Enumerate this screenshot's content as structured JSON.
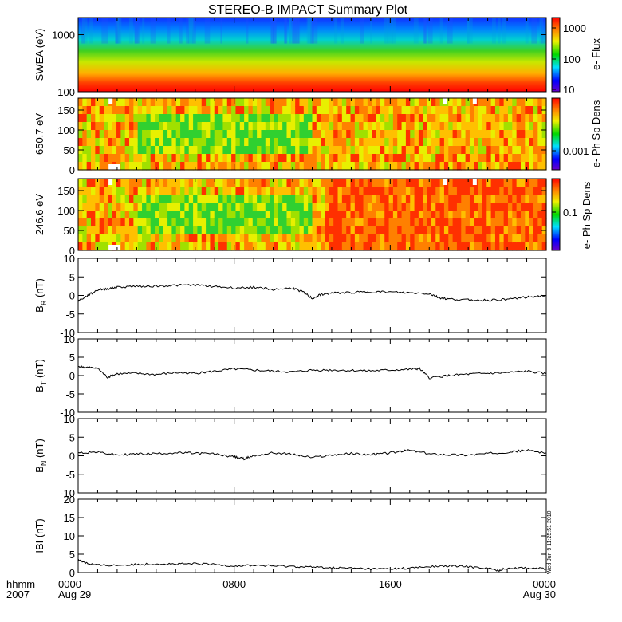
{
  "title": "STEREO-B IMPACT Summary Plot",
  "time_axis": {
    "ticks": [
      {
        "label": "0000",
        "sublabel": "Aug 29",
        "hours": 0
      },
      {
        "label": "0800",
        "sublabel": "",
        "hours": 8
      },
      {
        "label": "1600",
        "sublabel": "",
        "hours": 16
      },
      {
        "label": "0000",
        "sublabel": "Aug 30",
        "hours": 24
      }
    ],
    "corner_label": "hhmm",
    "corner_year": "2007",
    "timestamp": "Wed Jun 9 11:25:51 2010"
  },
  "colorbar_ticks": {
    "swea": [
      "1000",
      "100",
      "10"
    ],
    "ph650": [
      "0.001"
    ],
    "ph246": [
      "0.1"
    ]
  },
  "colorbar_labels": {
    "swea": "e- Flux",
    "ph": "e- Ph Sp Dens"
  },
  "chart_data": [
    {
      "type": "heatmap",
      "ylabel": "SWEA (eV)",
      "yscale": "log",
      "ylim": [
        100,
        2000
      ],
      "ytick_labels": [
        "1000",
        "100"
      ],
      "colorbar_label": "e- Flux",
      "colorbar_scale": "log",
      "colorbar_range": [
        10,
        2000
      ],
      "description_colors": "red at low energy, green mid, blue at high energy"
    },
    {
      "type": "heatmap",
      "ylabel": "650.7 eV",
      "ylim": [
        0,
        180
      ],
      "ytick_labels": [
        "0",
        "50",
        "100",
        "150"
      ],
      "colorbar_label": "e- Ph Sp Dens",
      "colorbar_scale": "log"
    },
    {
      "type": "heatmap",
      "ylabel": "246.6 eV",
      "ylim": [
        0,
        180
      ],
      "ytick_labels": [
        "0",
        "50",
        "100",
        "150"
      ],
      "colorbar_label": "e- Ph Sp Dens",
      "colorbar_scale": "log"
    },
    {
      "type": "line",
      "ylabel": "BR (nT)",
      "ylabel_main": "B",
      "ylabel_sub": "R",
      "ylabel_unit": "(nT)",
      "ylim": [
        -10,
        10
      ],
      "ytick_labels": [
        "-10",
        "-5",
        "0",
        "5",
        "10"
      ],
      "x": [
        0,
        0.5,
        1,
        1.5,
        2,
        3,
        4,
        5,
        6,
        7,
        8,
        9,
        10,
        11,
        11.5,
        12,
        12.5,
        13,
        14,
        15,
        16,
        17,
        18,
        18.5,
        19,
        20,
        21,
        22,
        23,
        24
      ],
      "y": [
        -1.5,
        0,
        1.5,
        1.8,
        2.2,
        2.5,
        2.5,
        2.7,
        2.8,
        2.4,
        2.0,
        2.2,
        1.6,
        2.0,
        1.0,
        -0.8,
        0.3,
        0.6,
        0.8,
        1.0,
        0.9,
        0.7,
        0.5,
        -0.6,
        -1.0,
        -1.2,
        -1.3,
        -1.0,
        -0.5,
        0.0
      ]
    },
    {
      "type": "line",
      "ylabel": "BT (nT)",
      "ylabel_main": "B",
      "ylabel_sub": "T",
      "ylabel_unit": "(nT)",
      "ylim": [
        -10,
        10
      ],
      "ytick_labels": [
        "-10",
        "-5",
        "0",
        "5",
        "10"
      ],
      "x": [
        0,
        0.5,
        1,
        1.5,
        2,
        3,
        4,
        5,
        6,
        7,
        8,
        9,
        10,
        11,
        12,
        13,
        14,
        15,
        16,
        17,
        17.5,
        18,
        19,
        20,
        21,
        22,
        23,
        24
      ],
      "y": [
        2.5,
        2.2,
        2.0,
        -0.5,
        0.5,
        0.6,
        0.3,
        0.8,
        0.6,
        1.2,
        1.8,
        1.5,
        1.2,
        1.0,
        1.5,
        1.5,
        1.4,
        1.3,
        1.5,
        1.7,
        1.9,
        -0.6,
        0.0,
        0.4,
        0.6,
        0.8,
        1.2,
        0.5
      ]
    },
    {
      "type": "line",
      "ylabel": "BN (nT)",
      "ylabel_main": "B",
      "ylabel_sub": "N",
      "ylabel_unit": "(nT)",
      "ylim": [
        -10,
        10
      ],
      "ytick_labels": [
        "-10",
        "-5",
        "0",
        "5",
        "10"
      ],
      "x": [
        0,
        1,
        2,
        3,
        4,
        5,
        6,
        7,
        8,
        8.5,
        9,
        10,
        11,
        12,
        13,
        14,
        15,
        16,
        17,
        18,
        19,
        20,
        21,
        22,
        23,
        24
      ],
      "y": [
        0.8,
        1.0,
        0.2,
        0.5,
        0.6,
        0.8,
        0.7,
        0.5,
        -0.3,
        -0.8,
        0.0,
        0.8,
        0.4,
        -0.5,
        0.2,
        0.6,
        0.3,
        0.8,
        1.5,
        0.5,
        0.3,
        0.2,
        0.6,
        1.0,
        1.5,
        0.8
      ]
    },
    {
      "type": "line",
      "ylabel": "|B| (nT)",
      "ylabel_main": "IBI",
      "ylabel_sub": "",
      "ylabel_unit": "(nT)",
      "ylim": [
        0,
        20
      ],
      "ytick_labels": [
        "0",
        "5",
        "10",
        "15",
        "20"
      ],
      "x": [
        0,
        0.5,
        1,
        2,
        3,
        4,
        5,
        6,
        7,
        8,
        9,
        10,
        11,
        12,
        13,
        14,
        15,
        16,
        17,
        18,
        19,
        20,
        21,
        21.5,
        22,
        23,
        24
      ],
      "y": [
        3.5,
        2.5,
        2.0,
        2.0,
        2.2,
        2.4,
        2.3,
        2.4,
        2.2,
        1.8,
        2.0,
        1.8,
        1.7,
        1.5,
        1.3,
        1.2,
        1.0,
        1.0,
        1.2,
        1.6,
        1.8,
        1.6,
        1.2,
        0.5,
        1.2,
        1.3,
        1.0
      ]
    }
  ]
}
